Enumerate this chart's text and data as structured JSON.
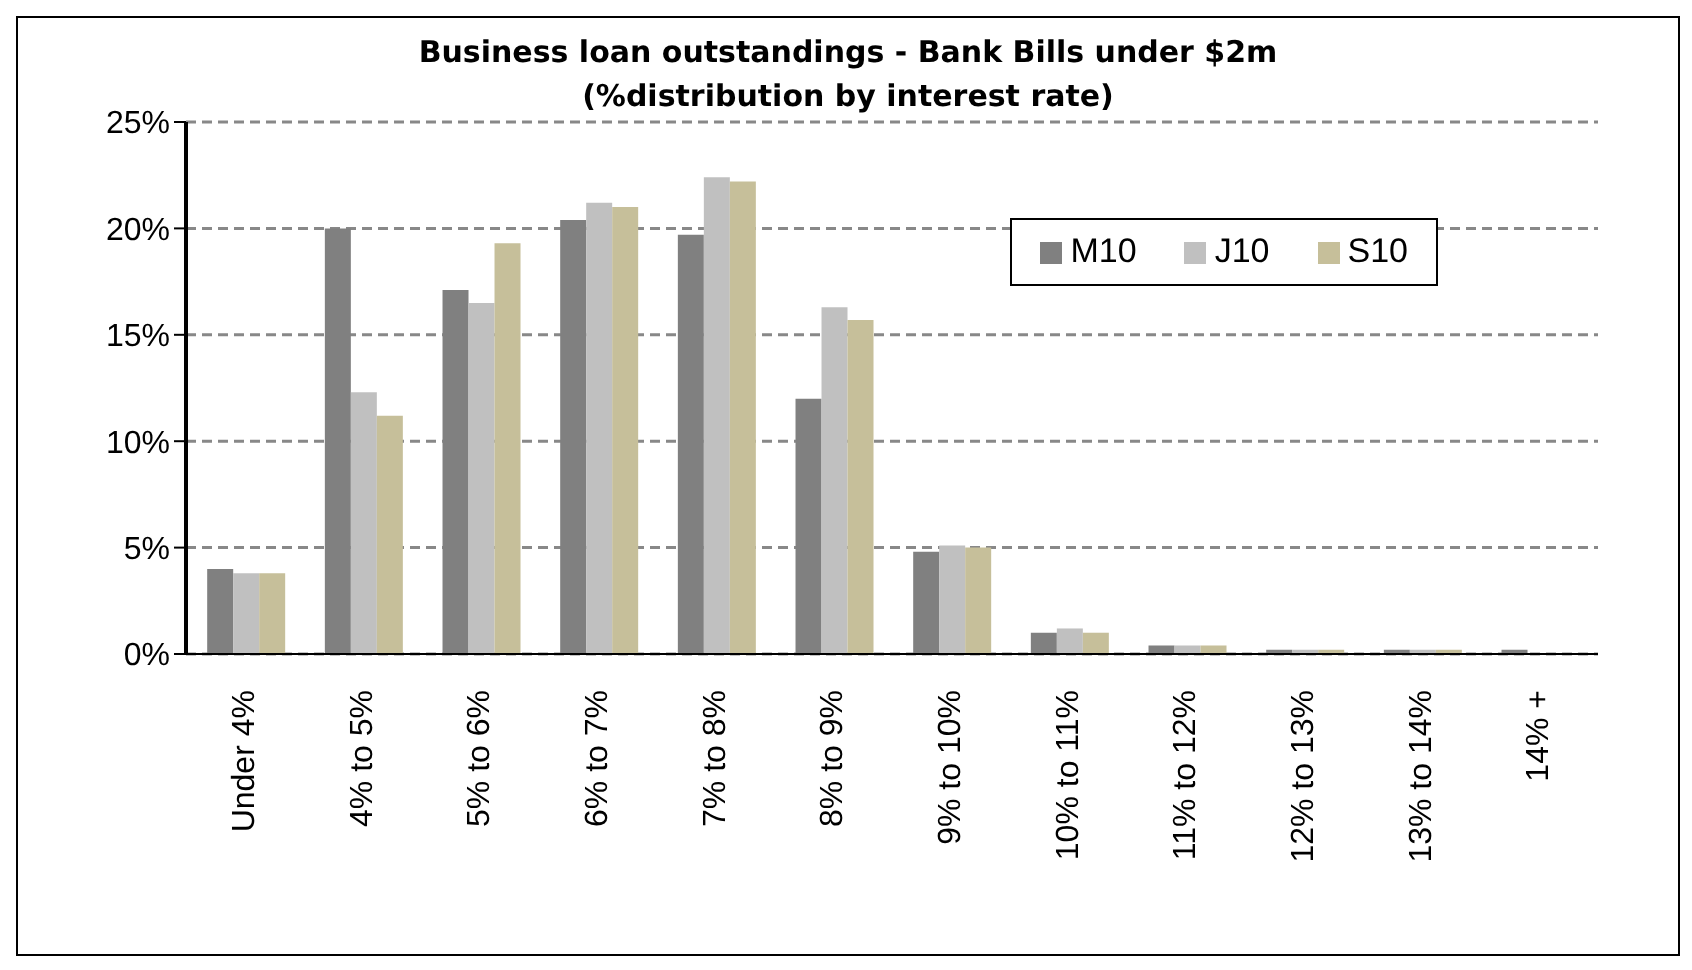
{
  "chart_data": {
    "type": "bar",
    "title": "Business loan outstandings  - Bank Bills under $2m\n(%distribution by interest rate)",
    "categories": [
      "Under 4%",
      "4% to 5%",
      "5% to 6%",
      "6% to 7%",
      "7% to 8%",
      "8% to 9%",
      "9% to 10%",
      "10% to 11%",
      "11% to 12%",
      "12% to 13%",
      "13% to 14%",
      "14% +"
    ],
    "series": [
      {
        "name": "M10",
        "color": "#808080",
        "values": [
          4.0,
          20.0,
          17.1,
          20.4,
          19.7,
          12.0,
          4.8,
          1.0,
          0.4,
          0.2,
          0.2,
          0.2
        ]
      },
      {
        "name": "J10",
        "color": "#c0c0c0",
        "values": [
          3.8,
          12.3,
          16.5,
          21.2,
          22.4,
          16.3,
          5.1,
          1.2,
          0.4,
          0.2,
          0.2,
          null
        ]
      },
      {
        "name": "S10",
        "color": "#c6bf9a",
        "values": [
          3.8,
          11.2,
          19.3,
          21.0,
          22.2,
          15.7,
          5.0,
          1.0,
          0.4,
          0.2,
          0.2,
          null
        ]
      }
    ],
    "ylim": [
      0,
      25
    ],
    "yticks": [
      {
        "value": 0,
        "label": "0%"
      },
      {
        "value": 5,
        "label": "5%"
      },
      {
        "value": 10,
        "label": "10%"
      },
      {
        "value": 15,
        "label": "15%"
      },
      {
        "value": 20,
        "label": "20%"
      },
      {
        "value": 25,
        "label": "25%"
      }
    ],
    "grid": "y",
    "legend": "top right"
  }
}
